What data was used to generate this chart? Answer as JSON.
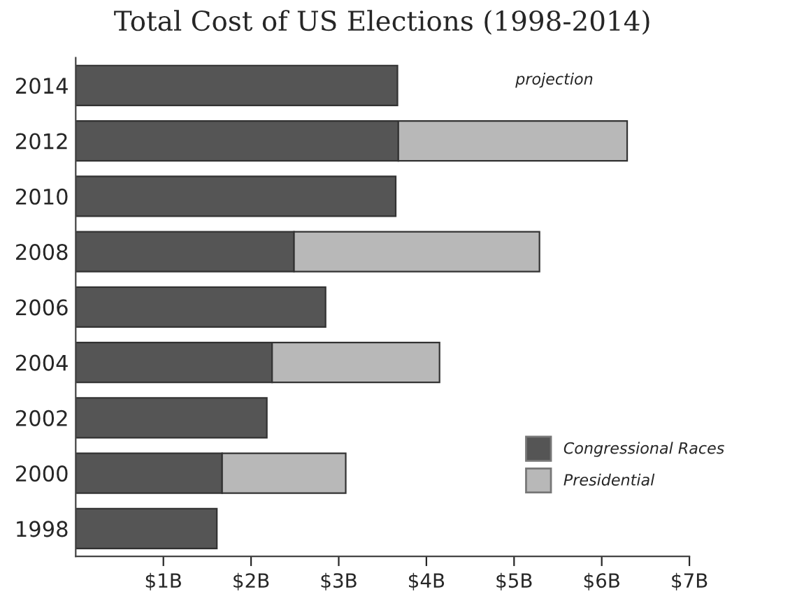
{
  "chart_data": {
    "type": "bar",
    "orientation": "horizontal",
    "stacked": true,
    "title": "Total Cost of US Elections (1998-2014)",
    "categories": [
      "2014",
      "2012",
      "2010",
      "2008",
      "2006",
      "2004",
      "2002",
      "2000",
      "1998"
    ],
    "series": [
      {
        "name": "Congressional Races",
        "color": "#555555",
        "values": [
          3.67,
          3.68,
          3.65,
          2.49,
          2.85,
          2.24,
          2.18,
          1.67,
          1.61
        ]
      },
      {
        "name": "Presidential",
        "color": "#b8b8b8",
        "values": [
          null,
          2.61,
          null,
          2.8,
          null,
          1.91,
          null,
          1.41,
          null
        ]
      }
    ],
    "xlim": [
      0,
      7
    ],
    "xticks": [
      {
        "value": 1,
        "label": "$1B"
      },
      {
        "value": 2,
        "label": "$2B"
      },
      {
        "value": 3,
        "label": "$3B"
      },
      {
        "value": 4,
        "label": "$4B"
      },
      {
        "value": 5,
        "label": "$5B"
      },
      {
        "value": 6,
        "label": "$6B"
      },
      {
        "value": 7,
        "label": "$7B"
      }
    ],
    "annotations": [
      "projection"
    ],
    "legend": "bottom right",
    "grid": false
  }
}
